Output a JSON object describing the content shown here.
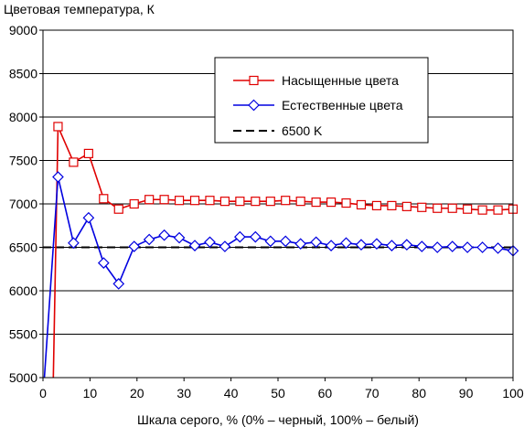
{
  "chart_data": {
    "type": "line",
    "title": "",
    "ylabel": "Цветовая температура, К",
    "xlabel": "Шкала серого, % (0% – черный, 100% – белый)",
    "xlim": [
      0,
      100
    ],
    "ylim": [
      5000,
      9000
    ],
    "x_ticks": [
      0,
      10,
      20,
      30,
      40,
      50,
      60,
      70,
      80,
      90,
      100
    ],
    "y_ticks": [
      5000,
      5500,
      6000,
      6500,
      7000,
      7500,
      8000,
      8500,
      9000
    ],
    "grid": "horizontal",
    "legend_position": "top-right",
    "colors": {
      "saturated": "#e00000",
      "natural": "#0000e0",
      "reference": "#000000"
    },
    "series": [
      {
        "name": "Насыщенные цвета",
        "color": "#e00000",
        "marker": "square",
        "x": [
          3.2,
          6.5,
          9.7,
          12.9,
          16.1,
          19.4,
          22.6,
          25.8,
          29.0,
          32.3,
          35.5,
          38.7,
          41.9,
          45.2,
          48.4,
          51.6,
          54.8,
          58.1,
          61.3,
          64.5,
          67.7,
          71.0,
          74.2,
          77.4,
          80.6,
          83.9,
          87.1,
          90.3,
          93.5,
          96.8,
          100
        ],
        "y": [
          7890,
          7480,
          7580,
          7060,
          6940,
          7000,
          7050,
          7050,
          7040,
          7040,
          7040,
          7030,
          7030,
          7030,
          7030,
          7040,
          7030,
          7020,
          7020,
          7010,
          6990,
          6980,
          6980,
          6970,
          6960,
          6950,
          6950,
          6940,
          6930,
          6930,
          6940
        ],
        "pre_line": [
          [
            2.2,
            5000
          ],
          [
            3.2,
            7890
          ]
        ]
      },
      {
        "name": "Естественные цвета",
        "color": "#0000e0",
        "marker": "diamond",
        "x": [
          0.3,
          3.2,
          6.5,
          9.7,
          12.9,
          16.1,
          19.4,
          22.6,
          25.8,
          29.0,
          32.3,
          35.5,
          38.7,
          41.9,
          45.2,
          48.4,
          51.6,
          54.8,
          58.1,
          61.3,
          64.5,
          67.7,
          71.0,
          74.2,
          77.4,
          80.6,
          83.9,
          87.1,
          90.3,
          93.5,
          96.8,
          100
        ],
        "y": [
          4990,
          7310,
          6550,
          6840,
          6320,
          6080,
          6510,
          6590,
          6640,
          6610,
          6520,
          6560,
          6510,
          6620,
          6620,
          6570,
          6570,
          6540,
          6560,
          6520,
          6550,
          6530,
          6540,
          6520,
          6530,
          6510,
          6500,
          6510,
          6500,
          6500,
          6490,
          6460
        ]
      },
      {
        "name": "6500 K",
        "color": "#000000",
        "dash": true,
        "x": [
          0,
          100
        ],
        "y": [
          6500,
          6500
        ]
      }
    ]
  }
}
